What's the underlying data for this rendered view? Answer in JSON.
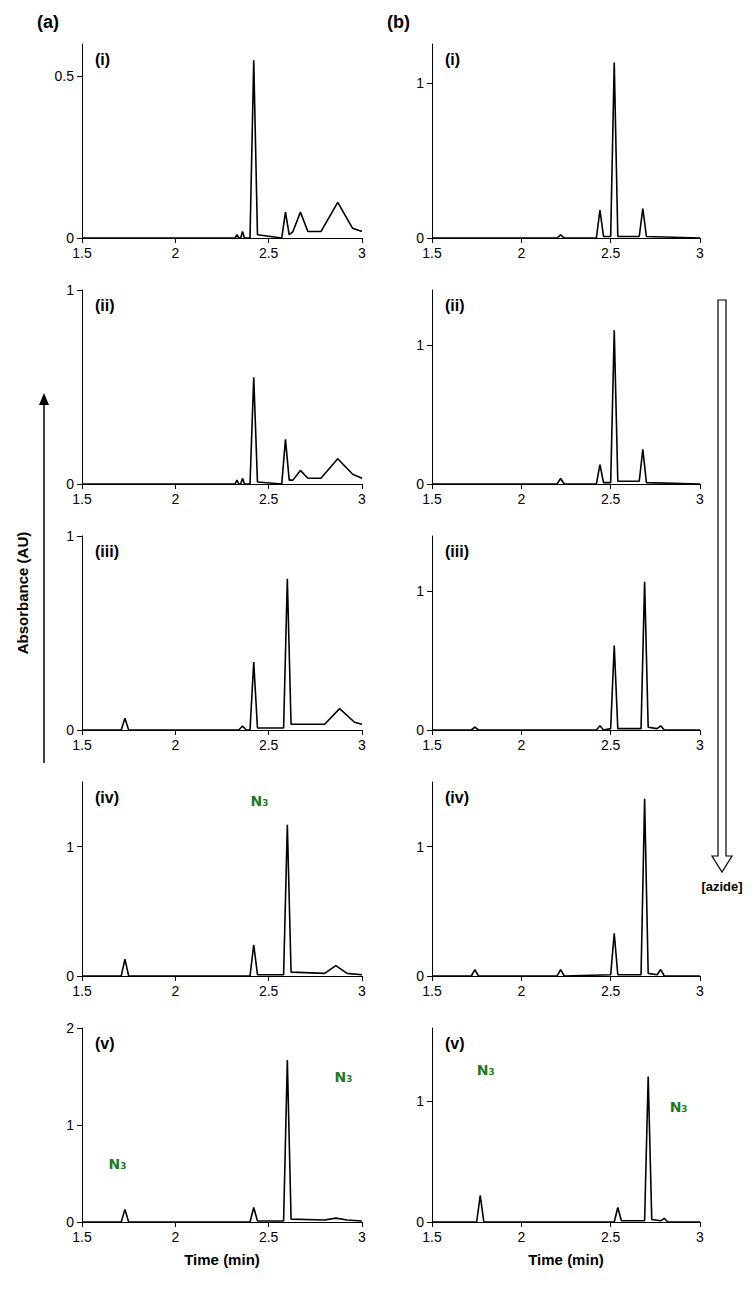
{
  "figure": {
    "column_labels": [
      "(a)",
      "(b)"
    ],
    "ylabel": "Absorbance (AU)",
    "arrow_label": "[azide]"
  },
  "chart_data": [
    {
      "type": "line",
      "title": "(i)",
      "color": "#000000",
      "grid": false,
      "x": [
        1.5,
        2.3,
        2.32,
        2.33,
        2.34,
        2.35,
        2.36,
        2.37,
        2.4,
        2.42,
        2.44,
        2.57,
        2.59,
        2.61,
        2.63,
        2.67,
        2.71,
        2.78,
        2.87,
        2.95,
        3.0
      ],
      "values": [
        0,
        0,
        0,
        0.01,
        0,
        0,
        0.02,
        0,
        0,
        0.55,
        0.01,
        0,
        0.08,
        0.01,
        0.02,
        0.08,
        0.02,
        0.02,
        0.11,
        0.03,
        0.02
      ],
      "xlim": [
        1.5,
        3
      ],
      "xticks": [
        1.5,
        2,
        2.5,
        3
      ],
      "ylim": [
        0,
        0.6
      ],
      "yticks": [
        0,
        0.5
      ]
    },
    {
      "type": "line",
      "title": "(ii)",
      "color": "#000000",
      "grid": false,
      "x": [
        1.5,
        2.3,
        2.32,
        2.33,
        2.34,
        2.35,
        2.36,
        2.37,
        2.4,
        2.42,
        2.44,
        2.57,
        2.59,
        2.61,
        2.63,
        2.67,
        2.71,
        2.78,
        2.87,
        2.95,
        3.0
      ],
      "values": [
        0,
        0,
        0,
        0.02,
        0,
        0,
        0.03,
        0,
        0,
        0.55,
        0.01,
        0,
        0.23,
        0.02,
        0.02,
        0.07,
        0.03,
        0.03,
        0.13,
        0.05,
        0.03
      ],
      "xlim": [
        1.5,
        3
      ],
      "xticks": [
        1.5,
        2,
        2.5,
        3
      ],
      "ylim": [
        0,
        1
      ],
      "yticks": [
        0,
        1
      ]
    },
    {
      "type": "line",
      "title": "(iii)",
      "color": "#000000",
      "grid": false,
      "x": [
        1.5,
        1.71,
        1.73,
        1.75,
        2.34,
        2.36,
        2.38,
        2.4,
        2.42,
        2.44,
        2.58,
        2.6,
        2.62,
        2.8,
        2.88,
        2.96,
        3.0
      ],
      "values": [
        0,
        0,
        0.06,
        0,
        0,
        0.02,
        0,
        0,
        0.35,
        0.01,
        0.01,
        0.78,
        0.03,
        0.03,
        0.11,
        0.04,
        0.03
      ],
      "xlim": [
        1.5,
        3
      ],
      "xticks": [
        1.5,
        2,
        2.5,
        3
      ],
      "ylim": [
        0,
        1
      ],
      "yticks": [
        0,
        1
      ]
    },
    {
      "type": "line",
      "title": "(iv)",
      "color": "#000000",
      "grid": false,
      "x": [
        1.5,
        1.71,
        1.73,
        1.75,
        2.4,
        2.42,
        2.44,
        2.58,
        2.6,
        2.62,
        2.8,
        2.86,
        2.92,
        3.0
      ],
      "values": [
        0,
        0,
        0.13,
        0,
        0,
        0.24,
        0.01,
        0.01,
        1.17,
        0.03,
        0.02,
        0.08,
        0.02,
        0.01
      ],
      "xlim": [
        1.5,
        3
      ],
      "xticks": [
        1.5,
        2,
        2.5,
        3
      ],
      "ylim": [
        0,
        1.5
      ],
      "yticks": [
        0,
        1
      ],
      "annotations": [
        {
          "text": "N₃",
          "x": 2.45,
          "y": 1.35
        }
      ]
    },
    {
      "type": "line",
      "title": "(v)",
      "color": "#000000",
      "grid": false,
      "xlabel": "Time (min)",
      "x": [
        1.5,
        1.71,
        1.73,
        1.75,
        2.4,
        2.42,
        2.44,
        2.58,
        2.6,
        2.62,
        2.8,
        2.86,
        2.92,
        3.0
      ],
      "values": [
        0,
        0,
        0.13,
        0,
        0,
        0.15,
        0.01,
        0.01,
        1.67,
        0.03,
        0.02,
        0.04,
        0.02,
        0.01
      ],
      "xlim": [
        1.5,
        3
      ],
      "xticks": [
        1.5,
        2,
        2.5,
        3
      ],
      "ylim": [
        0,
        2
      ],
      "yticks": [
        0,
        1,
        2
      ],
      "annotations": [
        {
          "text": "N₃",
          "x": 1.69,
          "y": 0.6
        },
        {
          "text": "N₃",
          "x": 2.9,
          "y": 1.5
        }
      ]
    },
    {
      "type": "line",
      "title": "(i)",
      "color": "#000000",
      "grid": false,
      "x": [
        1.5,
        2.2,
        2.22,
        2.24,
        2.42,
        2.44,
        2.46,
        2.5,
        2.52,
        2.54,
        2.66,
        2.68,
        2.7,
        3.0
      ],
      "values": [
        0,
        0,
        0.02,
        0,
        0,
        0.18,
        0.01,
        0.01,
        1.13,
        0.01,
        0.01,
        0.19,
        0.01,
        0
      ],
      "xlim": [
        1.5,
        3
      ],
      "xticks": [
        1.5,
        2,
        2.5,
        3
      ],
      "ylim": [
        0,
        1.25
      ],
      "yticks": [
        0,
        1
      ]
    },
    {
      "type": "line",
      "title": "(ii)",
      "color": "#000000",
      "grid": false,
      "x": [
        1.5,
        2.2,
        2.22,
        2.24,
        2.42,
        2.44,
        2.46,
        2.5,
        2.52,
        2.54,
        2.66,
        2.68,
        2.7,
        3.0
      ],
      "values": [
        0,
        0,
        0.04,
        0,
        0,
        0.14,
        0.01,
        0.01,
        1.11,
        0.02,
        0.02,
        0.25,
        0.01,
        0
      ],
      "xlim": [
        1.5,
        3
      ],
      "xticks": [
        1.5,
        2,
        2.5,
        3
      ],
      "ylim": [
        0,
        1.4
      ],
      "yticks": [
        0,
        1
      ]
    },
    {
      "type": "line",
      "title": "(iii)",
      "color": "#000000",
      "grid": false,
      "x": [
        1.5,
        1.72,
        1.74,
        1.76,
        2.42,
        2.44,
        2.46,
        2.5,
        2.52,
        2.54,
        2.67,
        2.69,
        2.71,
        2.76,
        2.78,
        2.8,
        3.0
      ],
      "values": [
        0,
        0,
        0.02,
        0,
        0,
        0.03,
        0,
        0.01,
        0.61,
        0.01,
        0.01,
        1.07,
        0.02,
        0.01,
        0.03,
        0,
        0
      ],
      "xlim": [
        1.5,
        3
      ],
      "xticks": [
        1.5,
        2,
        2.5,
        3
      ],
      "ylim": [
        0,
        1.4
      ],
      "yticks": [
        0,
        1
      ]
    },
    {
      "type": "line",
      "title": "(iv)",
      "color": "#000000",
      "grid": false,
      "x": [
        1.5,
        1.72,
        1.74,
        1.76,
        2.2,
        2.22,
        2.24,
        2.5,
        2.52,
        2.54,
        2.67,
        2.69,
        2.71,
        2.76,
        2.78,
        2.8,
        3.0
      ],
      "values": [
        0,
        0,
        0.05,
        0,
        0,
        0.05,
        0,
        0.01,
        0.33,
        0.01,
        0.01,
        1.37,
        0.02,
        0.01,
        0.05,
        0,
        0
      ],
      "xlim": [
        1.5,
        3
      ],
      "xticks": [
        1.5,
        2,
        2.5,
        3
      ],
      "ylim": [
        0,
        1.5
      ],
      "yticks": [
        0,
        1
      ]
    },
    {
      "type": "line",
      "title": "(v)",
      "color": "#000000",
      "grid": false,
      "xlabel": "Time (min)",
      "x": [
        1.5,
        1.75,
        1.77,
        1.79,
        2.52,
        2.54,
        2.56,
        2.69,
        2.71,
        2.73,
        2.78,
        2.8,
        2.82,
        3.0
      ],
      "values": [
        0,
        0,
        0.22,
        0,
        0,
        0.12,
        0.01,
        0.01,
        1.2,
        0.02,
        0.01,
        0.03,
        0,
        0
      ],
      "xlim": [
        1.5,
        3
      ],
      "xticks": [
        1.5,
        2,
        2.5,
        3
      ],
      "ylim": [
        0,
        1.6
      ],
      "yticks": [
        0,
        1
      ],
      "annotations": [
        {
          "text": "N₃",
          "x": 1.8,
          "y": 1.25
        },
        {
          "text": "N₃",
          "x": 2.88,
          "y": 0.95
        }
      ]
    }
  ]
}
